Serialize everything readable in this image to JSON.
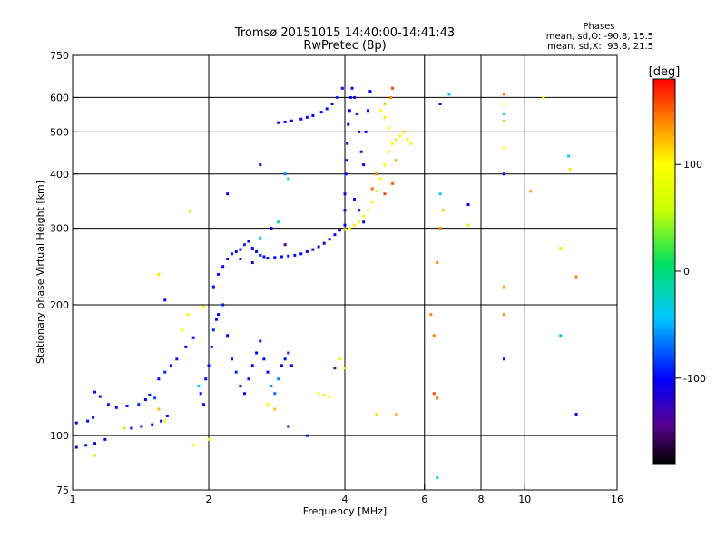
{
  "header": {
    "title": "Tromsø 20151015 14:40:00-14:41:43",
    "subtitle": "RwPretec (8p)"
  },
  "phases_box": {
    "heading": "Phases",
    "line_o": "mean, sd,O: -90.8, 15.5",
    "line_x": "mean, sd,X:  93.8, 21.5"
  },
  "colorbar": {
    "unit_label": "[deg]",
    "range": [
      -180,
      180
    ],
    "ticks": [
      {
        "value": 100,
        "label": "100"
      },
      {
        "value": 0,
        "label": "0"
      },
      {
        "value": -100,
        "label": "-100"
      }
    ]
  },
  "chart_data": {
    "type": "scatter",
    "title": "Tromsø 20151015 14:40:00-14:41:43",
    "subtitle": "RwPretec (8p)",
    "xlabel": "Frequency [MHz]",
    "ylabel": "Stationary phase Virtual Height [km]",
    "x_scale": "log",
    "y_scale": "log",
    "xlim": [
      1,
      16
    ],
    "ylim": [
      75,
      750
    ],
    "x_ticks": [
      {
        "value": 1,
        "label": "1"
      },
      {
        "value": 2,
        "label": "2"
      },
      {
        "value": 4,
        "label": "4"
      },
      {
        "value": 6,
        "label": "6"
      },
      {
        "value": 8,
        "label": "8"
      },
      {
        "value": 10,
        "label": "10"
      },
      {
        "value": 16,
        "label": "16"
      }
    ],
    "x_gridlines": [
      2,
      4,
      6,
      8,
      10
    ],
    "y_ticks": [
      {
        "value": 75,
        "label": "75"
      },
      {
        "value": 100,
        "label": "100"
      },
      {
        "value": 200,
        "label": "200"
      },
      {
        "value": 300,
        "label": "300"
      },
      {
        "value": 400,
        "label": "400"
      },
      {
        "value": 500,
        "label": "500"
      },
      {
        "value": 600,
        "label": "600"
      },
      {
        "value": 750,
        "label": "750"
      }
    ],
    "y_gridlines": [
      100,
      200,
      300,
      400,
      500,
      600
    ],
    "color_variable": "phase [deg]",
    "series": [
      {
        "points": [
          [
            1.02,
            107,
            -100
          ],
          [
            1.08,
            108,
            -100
          ],
          [
            1.11,
            110,
            -90
          ],
          [
            1.12,
            126,
            -95
          ],
          [
            1.15,
            123,
            -100
          ],
          [
            1.2,
            118,
            -95
          ],
          [
            1.25,
            116,
            -100
          ],
          [
            1.32,
            117,
            -100
          ],
          [
            1.4,
            118,
            -90
          ],
          [
            1.45,
            121,
            -100
          ],
          [
            1.48,
            124,
            -95
          ],
          [
            1.52,
            122,
            -80
          ],
          [
            1.55,
            135,
            -100
          ],
          [
            1.6,
            140,
            -90
          ],
          [
            1.65,
            145,
            -100
          ],
          [
            1.7,
            150,
            -95
          ],
          [
            1.78,
            160,
            -100
          ],
          [
            1.85,
            168,
            -100
          ],
          [
            1.3,
            104,
            -100
          ],
          [
            1.35,
            104,
            -100
          ],
          [
            1.42,
            105,
            -100
          ],
          [
            1.5,
            106,
            -95
          ],
          [
            1.57,
            108,
            -100
          ],
          [
            1.62,
            111,
            -100
          ],
          [
            1.02,
            94,
            -100
          ],
          [
            1.07,
            95,
            -95
          ],
          [
            1.12,
            96,
            -100
          ],
          [
            1.18,
            98,
            -100
          ],
          [
            1.92,
            125,
            -100
          ],
          [
            1.97,
            135,
            -95
          ],
          [
            2.0,
            145,
            -100
          ],
          [
            2.03,
            160,
            -100
          ],
          [
            2.05,
            175,
            -90
          ],
          [
            2.08,
            185,
            -100
          ],
          [
            2.1,
            190,
            -100
          ],
          [
            2.15,
            200,
            -95
          ],
          [
            2.2,
            170,
            -100
          ],
          [
            2.25,
            150,
            -100
          ],
          [
            2.3,
            140,
            -90
          ],
          [
            2.35,
            130,
            -100
          ],
          [
            2.4,
            125,
            -100
          ],
          [
            2.45,
            135,
            -95
          ],
          [
            2.5,
            145,
            -100
          ],
          [
            2.55,
            155,
            -100
          ],
          [
            2.6,
            165,
            -90
          ],
          [
            2.65,
            150,
            -100
          ],
          [
            2.7,
            140,
            -100
          ],
          [
            2.75,
            130,
            -60
          ],
          [
            2.8,
            125,
            -70
          ],
          [
            2.85,
            135,
            -60
          ],
          [
            2.9,
            145,
            -100
          ],
          [
            2.95,
            150,
            -100
          ],
          [
            3.0,
            155,
            -90
          ],
          [
            3.05,
            145,
            -110
          ],
          [
            2.05,
            220,
            -100
          ],
          [
            2.1,
            235,
            -95
          ],
          [
            2.15,
            245,
            -100
          ],
          [
            2.2,
            255,
            -100
          ],
          [
            2.25,
            262,
            -95
          ],
          [
            2.3,
            265,
            -100
          ],
          [
            2.35,
            268,
            -100
          ],
          [
            2.4,
            275,
            -90
          ],
          [
            2.45,
            280,
            -100
          ],
          [
            2.5,
            270,
            -100
          ],
          [
            2.55,
            265,
            -100
          ],
          [
            2.6,
            260,
            -95
          ],
          [
            2.65,
            258,
            -100
          ],
          [
            2.7,
            256,
            -100
          ],
          [
            2.8,
            257,
            -100
          ],
          [
            2.9,
            258,
            -100
          ],
          [
            3.0,
            259,
            -100
          ],
          [
            3.1,
            260,
            -100
          ],
          [
            3.2,
            262,
            -100
          ],
          [
            3.3,
            265,
            -110
          ],
          [
            3.4,
            268,
            -120
          ],
          [
            3.5,
            272,
            -130
          ],
          [
            3.6,
            277,
            -120
          ],
          [
            3.7,
            283,
            -110
          ],
          [
            3.8,
            290,
            -100
          ],
          [
            3.9,
            297,
            -110
          ],
          [
            4.0,
            305,
            -100
          ],
          [
            2.35,
            255,
            -130
          ],
          [
            2.5,
            250,
            -120
          ],
          [
            2.6,
            285,
            -40
          ],
          [
            2.75,
            300,
            -100
          ],
          [
            2.85,
            310,
            -20
          ],
          [
            2.95,
            275,
            -140
          ],
          [
            2.85,
            525,
            -100
          ],
          [
            2.95,
            527,
            -100
          ],
          [
            3.05,
            530,
            -100
          ],
          [
            3.2,
            535,
            -100
          ],
          [
            3.3,
            540,
            -95
          ],
          [
            3.4,
            545,
            -100
          ],
          [
            3.55,
            555,
            -100
          ],
          [
            3.65,
            565,
            -100
          ],
          [
            3.75,
            580,
            -100
          ],
          [
            3.85,
            600,
            -100
          ],
          [
            3.95,
            630,
            -100
          ],
          [
            4.0,
            330,
            -100
          ],
          [
            4.0,
            360,
            -110
          ],
          [
            4.02,
            400,
            -100
          ],
          [
            4.03,
            430,
            -95
          ],
          [
            4.05,
            470,
            -100
          ],
          [
            4.07,
            520,
            -100
          ],
          [
            4.1,
            560,
            -100
          ],
          [
            4.12,
            600,
            -100
          ],
          [
            4.15,
            630,
            -100
          ],
          [
            4.2,
            600,
            -100
          ],
          [
            4.25,
            550,
            -100
          ],
          [
            4.3,
            500,
            -100
          ],
          [
            4.35,
            450,
            -100
          ],
          [
            4.4,
            420,
            -100
          ],
          [
            4.45,
            500,
            -100
          ],
          [
            4.5,
            560,
            -100
          ],
          [
            4.55,
            620,
            -100
          ],
          [
            4.2,
            350,
            -100
          ],
          [
            4.3,
            330,
            -110
          ],
          [
            4.4,
            310,
            -100
          ],
          [
            4.0,
            298,
            90
          ],
          [
            4.1,
            300,
            100
          ],
          [
            4.2,
            305,
            110
          ],
          [
            4.3,
            310,
            100
          ],
          [
            4.4,
            320,
            95
          ],
          [
            4.5,
            330,
            100
          ],
          [
            4.6,
            345,
            100
          ],
          [
            4.7,
            365,
            105
          ],
          [
            4.8,
            390,
            100
          ],
          [
            4.9,
            420,
            100
          ],
          [
            5.0,
            450,
            105
          ],
          [
            5.1,
            470,
            100
          ],
          [
            5.2,
            480,
            110
          ],
          [
            5.3,
            490,
            100
          ],
          [
            5.4,
            500,
            115
          ],
          [
            5.5,
            480,
            100
          ],
          [
            5.6,
            470,
            105
          ],
          [
            4.8,
            560,
            100
          ],
          [
            4.9,
            540,
            110
          ],
          [
            5.0,
            510,
            100
          ],
          [
            5.05,
            600,
            140
          ],
          [
            5.1,
            630,
            160
          ],
          [
            4.9,
            580,
            120
          ],
          [
            4.9,
            360,
            160
          ],
          [
            4.6,
            370,
            150
          ],
          [
            4.7,
            400,
            140
          ],
          [
            5.1,
            380,
            150
          ],
          [
            5.2,
            430,
            140
          ],
          [
            6.5,
            580,
            -100
          ],
          [
            6.8,
            610,
            -40
          ],
          [
            6.5,
            360,
            -40
          ],
          [
            6.4,
            250,
            140
          ],
          [
            6.3,
            170,
            140
          ],
          [
            6.2,
            190,
            140
          ],
          [
            6.3,
            125,
            160
          ],
          [
            6.4,
            122,
            150
          ],
          [
            6.5,
            300,
            140
          ],
          [
            6.6,
            330,
            120
          ],
          [
            7.5,
            340,
            -100
          ],
          [
            7.5,
            305,
            60
          ],
          [
            6.4,
            80,
            -40
          ],
          [
            9.0,
            610,
            140
          ],
          [
            9.0,
            580,
            100
          ],
          [
            9.0,
            550,
            -40
          ],
          [
            9.0,
            530,
            120
          ],
          [
            9.0,
            460,
            100
          ],
          [
            9.0,
            400,
            -100
          ],
          [
            9.0,
            190,
            140
          ],
          [
            9.0,
            150,
            -100
          ],
          [
            9.0,
            220,
            130
          ],
          [
            10.3,
            365,
            130
          ],
          [
            11.0,
            600,
            100
          ],
          [
            12.0,
            270,
            70
          ],
          [
            12.5,
            440,
            -40
          ],
          [
            12.6,
            410,
            110
          ],
          [
            12.0,
            170,
            -40
          ],
          [
            13.0,
            232,
            140
          ],
          [
            13.0,
            112,
            -100
          ],
          [
            5.2,
            112,
            130
          ],
          [
            4.7,
            112,
            110
          ],
          [
            3.5,
            125,
            100
          ],
          [
            3.6,
            124,
            105
          ],
          [
            3.7,
            123,
            100
          ],
          [
            3.9,
            150,
            80
          ],
          [
            3.8,
            143,
            -140
          ],
          [
            4.0,
            143,
            110
          ],
          [
            3.3,
            100,
            -100
          ],
          [
            3.0,
            105,
            -100
          ],
          [
            1.55,
            235,
            110
          ],
          [
            1.6,
            205,
            -100
          ],
          [
            1.75,
            175,
            100
          ],
          [
            1.82,
            328,
            110
          ],
          [
            1.8,
            190,
            100
          ],
          [
            1.95,
            198,
            100
          ],
          [
            2.95,
            400,
            -60
          ],
          [
            2.6,
            420,
            -100
          ],
          [
            2.2,
            360,
            -100
          ],
          [
            3.0,
            390,
            -40
          ],
          [
            1.12,
            90,
            110
          ],
          [
            1.3,
            104,
            60
          ],
          [
            1.55,
            115,
            120
          ],
          [
            1.6,
            108,
            80
          ],
          [
            1.85,
            95,
            100
          ],
          [
            2.0,
            98,
            90
          ],
          [
            1.95,
            118,
            -100
          ],
          [
            1.9,
            130,
            -40
          ],
          [
            2.7,
            118,
            90
          ],
          [
            2.8,
            115,
            120
          ]
        ]
      }
    ]
  }
}
